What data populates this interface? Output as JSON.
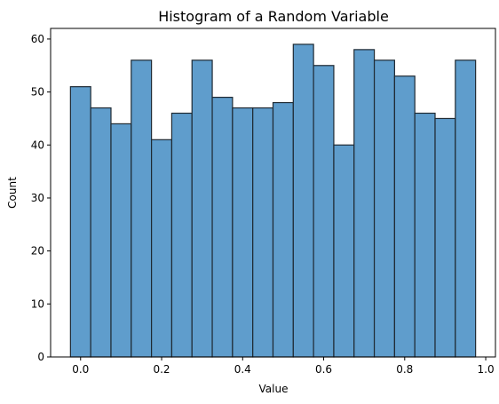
{
  "chart_data": {
    "type": "bar",
    "title": "Histogram of a Random Variable",
    "xlabel": "Value",
    "ylabel": "Count",
    "bin_start": -0.025,
    "bin_width": 0.05,
    "values": [
      51,
      47,
      44,
      56,
      41,
      46,
      56,
      49,
      47,
      47,
      48,
      59,
      55,
      40,
      58,
      56,
      53,
      46,
      45,
      56
    ],
    "xlim": [
      -0.074,
      1.024
    ],
    "ylim": [
      0,
      62
    ],
    "xticks": [
      0.0,
      0.2,
      0.4,
      0.6,
      0.8,
      1.0
    ],
    "xtick_labels": [
      "0.0",
      "0.2",
      "0.4",
      "0.6",
      "0.8",
      "1.0"
    ],
    "yticks": [
      0,
      10,
      20,
      30,
      40,
      50,
      60
    ],
    "ytick_labels": [
      "0",
      "10",
      "20",
      "30",
      "40",
      "50",
      "60"
    ],
    "grid": false,
    "bar_color": "#5f9dcc",
    "bar_edge_color": "#1f2a33"
  }
}
